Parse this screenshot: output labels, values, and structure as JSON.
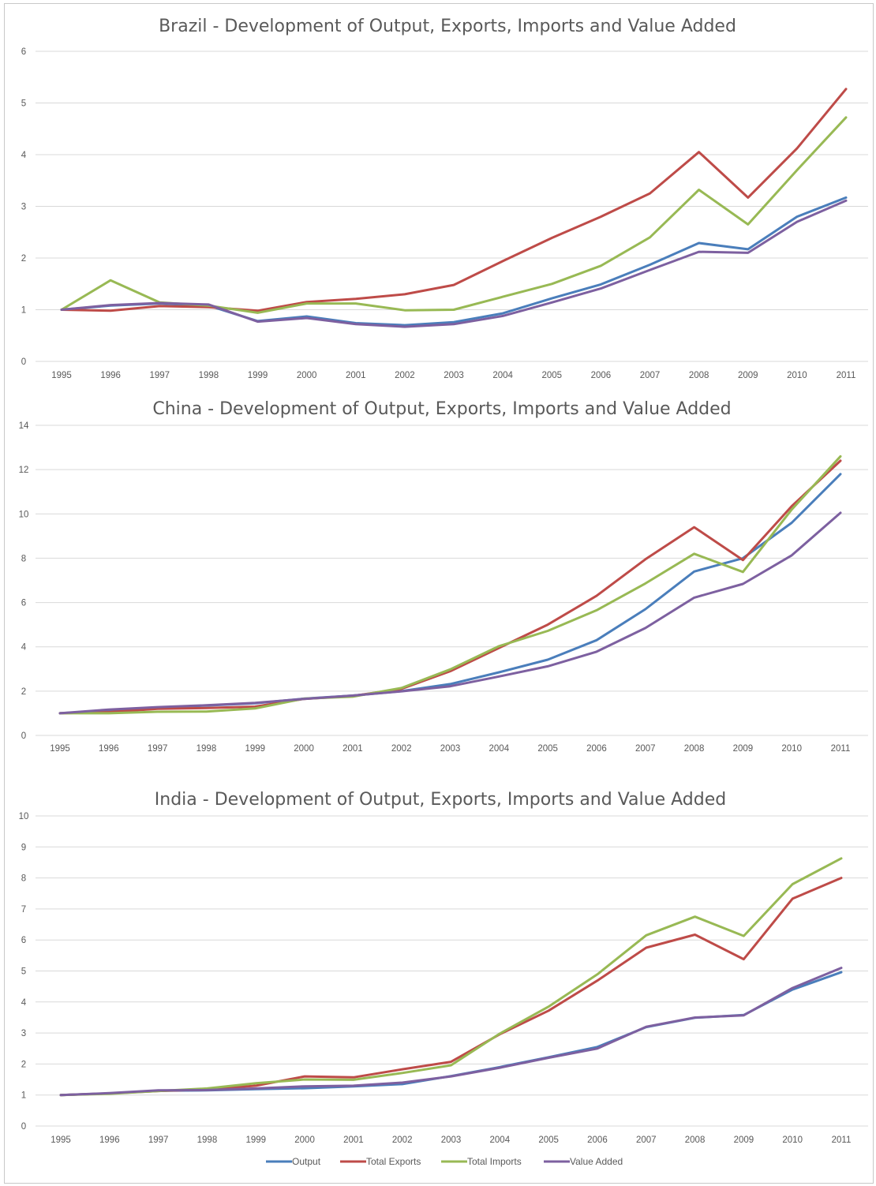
{
  "series_colors": {
    "Output": "#4a7ebb",
    "Total Exports": "#be4b48",
    "Total Imports": "#98b954",
    "Value Added": "#7d60a0"
  },
  "legend": [
    "Output",
    "Total Exports",
    "Total Imports",
    "Value Added"
  ],
  "chart_data": [
    {
      "type": "line",
      "title": "Brazil - Development of Output, Exports, Imports and Value Added",
      "x": [
        "1995",
        "1996",
        "1997",
        "1998",
        "1999",
        "2000",
        "2001",
        "2002",
        "2003",
        "2004",
        "2005",
        "2006",
        "2007",
        "2008",
        "2009",
        "2010",
        "2011"
      ],
      "ylim": [
        0,
        6
      ],
      "yticks": [
        0,
        1,
        2,
        3,
        4,
        5,
        6
      ],
      "grid": true,
      "series": [
        {
          "name": "Output",
          "values": [
            1.0,
            1.08,
            1.12,
            1.08,
            0.78,
            0.87,
            0.74,
            0.7,
            0.76,
            0.93,
            1.22,
            1.49,
            1.87,
            2.29,
            2.17,
            2.8,
            3.17
          ]
        },
        {
          "name": "Total Exports",
          "values": [
            1.0,
            0.98,
            1.07,
            1.05,
            0.98,
            1.15,
            1.21,
            1.3,
            1.48,
            1.94,
            2.39,
            2.8,
            3.25,
            4.05,
            3.17,
            4.12,
            5.27
          ]
        },
        {
          "name": "Total Imports",
          "values": [
            1.0,
            1.57,
            1.14,
            1.08,
            0.94,
            1.12,
            1.12,
            0.99,
            1.0,
            1.25,
            1.5,
            1.85,
            2.4,
            3.32,
            2.65,
            3.7,
            4.72
          ]
        },
        {
          "name": "Value Added",
          "values": [
            1.0,
            1.09,
            1.13,
            1.1,
            0.77,
            0.84,
            0.72,
            0.67,
            0.72,
            0.88,
            1.14,
            1.41,
            1.77,
            2.12,
            2.1,
            2.7,
            3.11
          ]
        }
      ]
    },
    {
      "type": "line",
      "title": "China - Development of Output, Exports, Imports and Value Added",
      "x": [
        "1995",
        "1996",
        "1997",
        "1998",
        "1999",
        "2000",
        "2001",
        "2002",
        "2003",
        "2004",
        "2005",
        "2006",
        "2007",
        "2008",
        "2009",
        "2010",
        "2011"
      ],
      "ylim": [
        0,
        14
      ],
      "yticks": [
        0,
        2,
        4,
        6,
        8,
        10,
        12,
        14
      ],
      "grid": true,
      "series": [
        {
          "name": "Output",
          "values": [
            1.0,
            1.12,
            1.26,
            1.35,
            1.45,
            1.66,
            1.8,
            2.0,
            2.32,
            2.85,
            3.42,
            4.3,
            5.7,
            7.4,
            8.0,
            9.6,
            11.8
          ]
        },
        {
          "name": "Total Exports",
          "values": [
            1.0,
            1.05,
            1.2,
            1.24,
            1.3,
            1.65,
            1.78,
            2.1,
            2.9,
            3.95,
            5.0,
            6.3,
            7.95,
            9.4,
            7.92,
            10.35,
            12.4
          ]
        },
        {
          "name": "Total Imports",
          "values": [
            1.0,
            1.0,
            1.07,
            1.08,
            1.22,
            1.66,
            1.75,
            2.14,
            2.98,
            4.03,
            4.72,
            5.65,
            6.86,
            8.2,
            7.38,
            10.2,
            12.6
          ]
        },
        {
          "name": "Value Added",
          "values": [
            1.0,
            1.17,
            1.28,
            1.36,
            1.47,
            1.65,
            1.8,
            1.99,
            2.22,
            2.66,
            3.12,
            3.78,
            4.85,
            6.22,
            6.84,
            8.13,
            10.05
          ]
        }
      ]
    },
    {
      "type": "line",
      "title": "India - Development of Output, Exports, Imports and Value Added",
      "x": [
        "1995",
        "1996",
        "1997",
        "1998",
        "1999",
        "2000",
        "2001",
        "2002",
        "2003",
        "2004",
        "2005",
        "2006",
        "2007",
        "2008",
        "2009",
        "2010",
        "2011"
      ],
      "ylim": [
        0,
        10
      ],
      "yticks": [
        0,
        1,
        2,
        3,
        4,
        5,
        6,
        7,
        8,
        9,
        10
      ],
      "grid": true,
      "series": [
        {
          "name": "Output",
          "values": [
            1.0,
            1.05,
            1.14,
            1.15,
            1.19,
            1.22,
            1.28,
            1.35,
            1.61,
            1.9,
            2.22,
            2.55,
            3.19,
            3.49,
            3.58,
            4.4,
            4.96
          ]
        },
        {
          "name": "Total Exports",
          "values": [
            1.0,
            1.05,
            1.13,
            1.18,
            1.3,
            1.6,
            1.57,
            1.83,
            2.07,
            2.96,
            3.72,
            4.69,
            5.75,
            6.17,
            5.38,
            7.33,
            8.0
          ]
        },
        {
          "name": "Total Imports",
          "values": [
            1.0,
            1.04,
            1.13,
            1.21,
            1.38,
            1.5,
            1.49,
            1.71,
            1.96,
            2.98,
            3.85,
            4.89,
            6.15,
            6.75,
            6.13,
            7.8,
            8.63
          ]
        },
        {
          "name": "Value Added",
          "values": [
            1.0,
            1.06,
            1.15,
            1.16,
            1.21,
            1.28,
            1.3,
            1.4,
            1.6,
            1.88,
            2.2,
            2.5,
            3.2,
            3.5,
            3.57,
            4.45,
            5.1
          ]
        }
      ]
    }
  ]
}
